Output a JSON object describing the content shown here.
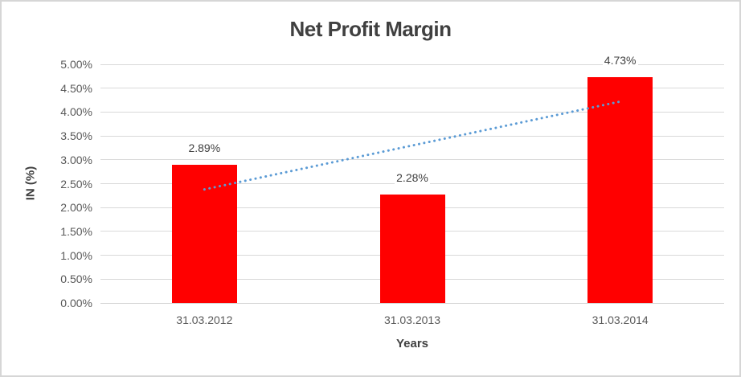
{
  "chart_data": {
    "type": "bar",
    "title": "Net Profit Margin",
    "xlabel": "Years",
    "ylabel": "IN (%)",
    "categories": [
      "31.03.2012",
      "31.03.2013",
      "31.03.2014"
    ],
    "series": [
      {
        "name": "Net Profit Margin",
        "color": "#FF0000",
        "values": [
          2.89,
          2.28,
          4.73
        ]
      }
    ],
    "data_labels": [
      "2.89%",
      "2.28%",
      "4.73%"
    ],
    "ylim": [
      0,
      5
    ],
    "ytick_step": 0.5,
    "ytick_labels": [
      "0.00%",
      "0.50%",
      "1.00%",
      "1.50%",
      "2.00%",
      "2.50%",
      "3.00%",
      "3.50%",
      "4.00%",
      "4.50%",
      "5.00%"
    ],
    "grid": true,
    "legend": "none",
    "trendline": {
      "type": "linear",
      "style": "dotted",
      "color": "#5B9BD5",
      "start_category_index": 0,
      "end_category_index": 2,
      "start_value": 2.38,
      "end_value": 4.22
    }
  },
  "colors": {
    "bar": "#FF0000",
    "trendline": "#5B9BD5",
    "gridline": "#D9D9D9",
    "axis_text": "#595959",
    "title_text": "#404040",
    "border": "#D6D6D6",
    "background": "#FFFFFF"
  }
}
